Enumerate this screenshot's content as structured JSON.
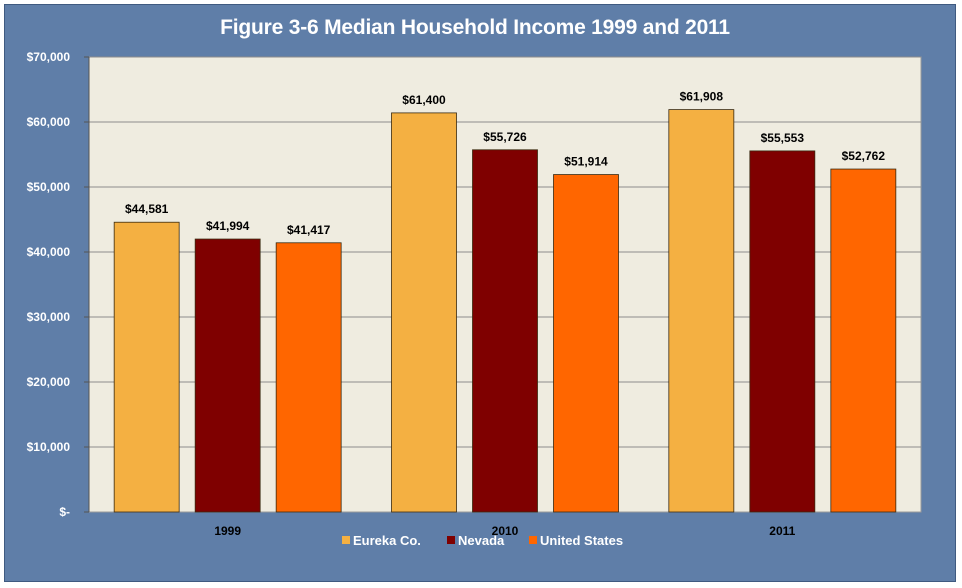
{
  "chart_data": {
    "type": "bar",
    "title": "Figure 3-6 Median Household Income 1999 and 2011",
    "categories": [
      "1999",
      "2010",
      "2011"
    ],
    "series": [
      {
        "name": "Eureka Co.",
        "color": "#f4b042",
        "values": [
          44581,
          61400,
          61908
        ],
        "labels": [
          "$44,581",
          "$61,400",
          "$61,908"
        ]
      },
      {
        "name": "Nevada",
        "color": "#7f0000",
        "values": [
          41994,
          55726,
          55553
        ],
        "labels": [
          "$41,994",
          "$55,726",
          "$55,553"
        ]
      },
      {
        "name": "United States",
        "color": "#ff6600",
        "values": [
          41417,
          51914,
          52762
        ],
        "labels": [
          "$41,417",
          "$51,914",
          "$52,762"
        ]
      }
    ],
    "ylim": [
      0,
      70000
    ],
    "yticks": [
      0,
      10000,
      20000,
      30000,
      40000,
      50000,
      60000,
      70000
    ],
    "ytick_labels": [
      "$-",
      "$10,000",
      "$20,000",
      "$30,000",
      "$40,000",
      "$50,000",
      "$60,000",
      "$70,000"
    ],
    "grid": true,
    "legend_position": "bottom",
    "colors": {
      "frame": "#5f7ea8",
      "plot_background": "#efece0",
      "gridline": "#8c8c8c"
    }
  }
}
